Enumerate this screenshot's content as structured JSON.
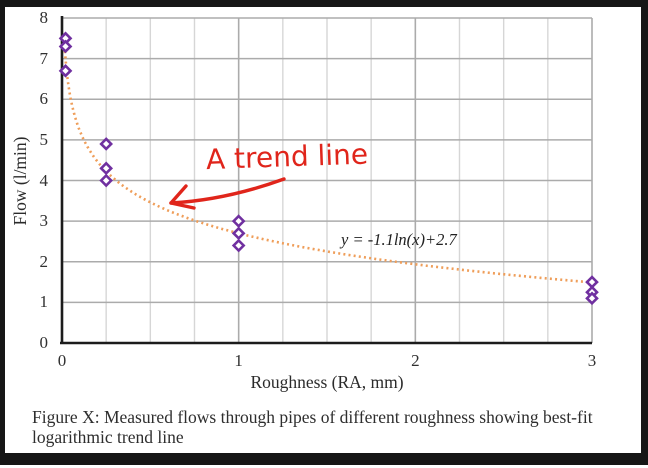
{
  "frame": {
    "border_color": "#161616"
  },
  "chart_data": {
    "type": "scatter",
    "xlabel": "Roughness (RA, mm)",
    "ylabel": "Flow (l/min)",
    "xlim": [
      0,
      3
    ],
    "ylim": [
      0,
      8
    ],
    "x_ticks": [
      0,
      1,
      2,
      3
    ],
    "y_ticks": [
      0,
      1,
      2,
      3,
      4,
      5,
      6,
      7,
      8
    ],
    "x_minor_grid_step": 0.25,
    "grid": "on",
    "points": [
      {
        "x": 0.02,
        "y": 7.5
      },
      {
        "x": 0.02,
        "y": 7.3
      },
      {
        "x": 0.02,
        "y": 6.7
      },
      {
        "x": 0.25,
        "y": 4.9
      },
      {
        "x": 0.25,
        "y": 4.3
      },
      {
        "x": 0.25,
        "y": 4.0
      },
      {
        "x": 1.0,
        "y": 3.0
      },
      {
        "x": 1.0,
        "y": 2.7
      },
      {
        "x": 1.0,
        "y": 2.4
      },
      {
        "x": 3.0,
        "y": 1.5
      },
      {
        "x": 3.0,
        "y": 1.25
      },
      {
        "x": 3.0,
        "y": 1.1
      }
    ],
    "marker": {
      "shape": "open-diamond",
      "color": "#7030a0",
      "fill": "#ffffff"
    },
    "trendline": {
      "type": "logarithmic",
      "a": -1.1,
      "b": 2.7,
      "x_start": 0.017,
      "x_end": 3,
      "style": "dotted",
      "color": "#ef9e5a",
      "equation_label": "y = -1.1ln(x)+2.7"
    },
    "annotation": {
      "text": "A trend line",
      "color": "#e0251b",
      "has_arrow": true
    },
    "colors": {
      "grid_major": "#ababab",
      "grid_minor": "#d6d6d6",
      "axis": "#1c1c1c"
    }
  },
  "caption": {
    "text": "Figure X: Measured flows through pipes of different roughness showing best-fit logarithmic trend line"
  }
}
